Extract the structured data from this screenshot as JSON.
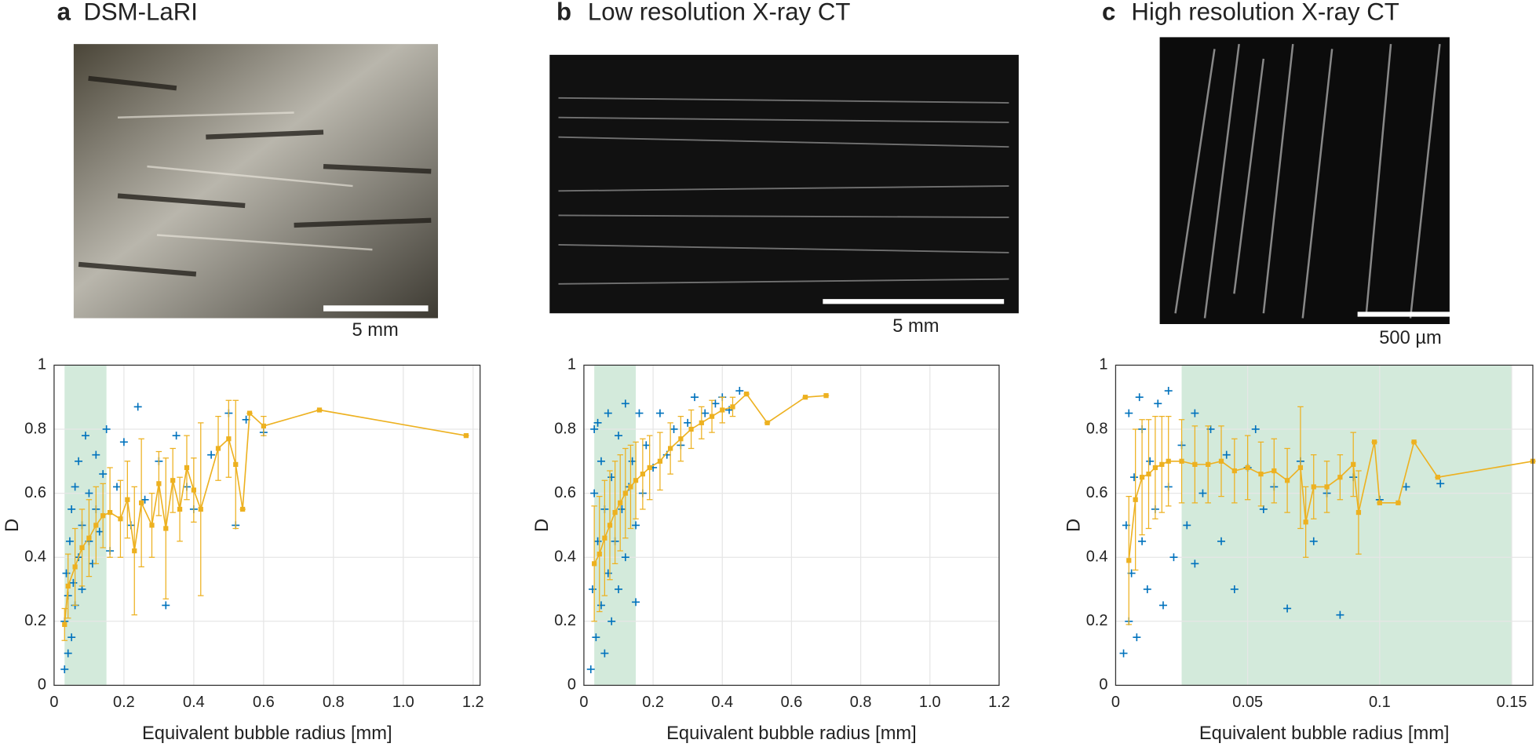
{
  "chart_data": [
    {
      "type": "scatter",
      "panel_label": "a",
      "title": "DSM-LaRI",
      "scale_bar_label": "5 mm",
      "x_label": "Equivalent bubble radius [mm]",
      "y_label": "D",
      "xlim": [
        0,
        1.22
      ],
      "ylim": [
        0,
        1
      ],
      "xticks": [
        0,
        0.2,
        0.4,
        0.6,
        0.8,
        {
          "value": 1,
          "label": "1.0"
        },
        1.2
      ],
      "yticks": [
        0,
        0.2,
        0.4,
        0.6,
        0.8,
        1
      ],
      "grid": true,
      "highlight": [
        0.03,
        0.15
      ],
      "highlight_color": "#d3eadb",
      "series": [
        {
          "color": "#0072bd",
          "x": [
            0.03,
            0.03,
            0.035,
            0.04,
            0.04,
            0.045,
            0.05,
            0.05,
            0.055,
            0.06,
            0.06,
            0.07,
            0.07,
            0.08,
            0.08,
            0.09,
            0.1,
            0.1,
            0.11,
            0.12,
            0.12,
            0.13,
            0.14,
            0.15,
            0.16,
            0.18,
            0.2,
            0.22,
            0.24,
            0.26,
            0.3,
            0.32,
            0.35,
            0.38,
            0.4,
            0.45,
            0.5,
            0.52,
            0.55,
            0.6
          ],
          "values": [
            0.05,
            0.2,
            0.35,
            0.1,
            0.28,
            0.45,
            0.15,
            0.55,
            0.32,
            0.25,
            0.62,
            0.4,
            0.7,
            0.3,
            0.5,
            0.78,
            0.45,
            0.6,
            0.38,
            0.55,
            0.72,
            0.48,
            0.66,
            0.8,
            0.42,
            0.62,
            0.76,
            0.5,
            0.87,
            0.58,
            0.7,
            0.25,
            0.78,
            0.62,
            0.55,
            0.72,
            0.85,
            0.5,
            0.83,
            0.79
          ]
        },
        {
          "color": "#edb120",
          "x": [
            0.03,
            0.04,
            0.06,
            0.08,
            0.1,
            0.12,
            0.14,
            0.16,
            0.19,
            0.21,
            0.23,
            0.25,
            0.28,
            0.3,
            0.32,
            0.34,
            0.36,
            0.38,
            0.4,
            0.42,
            0.47,
            0.5,
            0.52,
            0.54,
            0.56,
            0.6,
            0.76,
            1.18
          ],
          "values": [
            0.19,
            0.31,
            0.37,
            0.43,
            0.46,
            0.5,
            0.53,
            0.54,
            0.52,
            0.58,
            0.42,
            0.57,
            0.5,
            0.63,
            0.49,
            0.64,
            0.55,
            0.68,
            0.61,
            0.55,
            0.74,
            0.77,
            0.69,
            0.55,
            0.85,
            0.81,
            0.86,
            0.78
          ],
          "errors": [
            0.05,
            0.1,
            0.12,
            0.12,
            0.12,
            0.12,
            0.1,
            0.14,
            0.12,
            0.12,
            0.2,
            0.2,
            0.1,
            0.1,
            0.22,
            0.1,
            0.1,
            0.1,
            0.1,
            0.27,
            0.1,
            0.12,
            0.2,
            0,
            0,
            0.03,
            0,
            0
          ]
        }
      ]
    },
    {
      "type": "scatter",
      "panel_label": "b",
      "title": "Low resolution X-ray CT",
      "scale_bar_label": "5 mm",
      "x_label": "Equivalent bubble radius [mm]",
      "y_label": "D",
      "xlim": [
        0,
        1.2
      ],
      "ylim": [
        0,
        1
      ],
      "xticks": [
        0,
        0.2,
        0.4,
        0.6,
        0.8,
        {
          "value": 1,
          "label": "1.0"
        },
        1.2
      ],
      "yticks": [
        0,
        0.2,
        0.4,
        0.6,
        0.8,
        1
      ],
      "grid": true,
      "highlight": [
        0.03,
        0.15
      ],
      "highlight_color": "#d3eadb",
      "series": [
        {
          "color": "#0072bd",
          "x": [
            0.02,
            0.025,
            0.03,
            0.03,
            0.035,
            0.04,
            0.04,
            0.05,
            0.05,
            0.06,
            0.06,
            0.07,
            0.07,
            0.08,
            0.08,
            0.09,
            0.1,
            0.1,
            0.11,
            0.12,
            0.12,
            0.13,
            0.14,
            0.15,
            0.16,
            0.17,
            0.18,
            0.2,
            0.22,
            0.24,
            0.26,
            0.28,
            0.3,
            0.32,
            0.35,
            0.38,
            0.4,
            0.42,
            0.45,
            0.15
          ],
          "values": [
            0.05,
            0.3,
            0.6,
            0.8,
            0.15,
            0.45,
            0.82,
            0.25,
            0.7,
            0.1,
            0.55,
            0.35,
            0.85,
            0.2,
            0.65,
            0.45,
            0.3,
            0.78,
            0.55,
            0.4,
            0.88,
            0.62,
            0.7,
            0.5,
            0.85,
            0.6,
            0.75,
            0.68,
            0.85,
            0.72,
            0.8,
            0.75,
            0.82,
            0.9,
            0.85,
            0.88,
            0.9,
            0.86,
            0.92,
            0.26
          ]
        },
        {
          "color": "#edb120",
          "x": [
            0.03,
            0.045,
            0.06,
            0.075,
            0.09,
            0.105,
            0.12,
            0.135,
            0.15,
            0.17,
            0.19,
            0.22,
            0.25,
            0.28,
            0.31,
            0.34,
            0.37,
            0.4,
            0.43,
            0.47,
            0.53,
            0.64,
            0.7
          ],
          "values": [
            0.38,
            0.41,
            0.46,
            0.5,
            0.54,
            0.57,
            0.6,
            0.62,
            0.64,
            0.66,
            0.68,
            0.7,
            0.74,
            0.77,
            0.8,
            0.82,
            0.84,
            0.86,
            0.87,
            0.91,
            0.82,
            0.9,
            0.905
          ],
          "errors": [
            0.18,
            0.18,
            0.18,
            0.17,
            0.16,
            0.15,
            0.14,
            0.13,
            0.12,
            0.11,
            0.1,
            0.09,
            0.08,
            0.07,
            0.06,
            0.05,
            0.05,
            0.04,
            0.03,
            0,
            0,
            0,
            0
          ]
        }
      ]
    },
    {
      "type": "scatter",
      "panel_label": "c",
      "title": "High resolution X-ray CT",
      "scale_bar_label": "500 µm",
      "x_label": "Equivalent bubble radius [mm]",
      "y_label": "D",
      "xlim": [
        0,
        0.158
      ],
      "ylim": [
        0,
        1
      ],
      "xticks": [
        0,
        0.05,
        0.1,
        0.15
      ],
      "yticks": [
        0,
        0.2,
        0.4,
        0.6,
        0.8,
        1
      ],
      "grid": true,
      "highlight": [
        0.025,
        0.15
      ],
      "highlight_color": "#d3eadb",
      "series": [
        {
          "color": "#0072bd",
          "x": [
            0.003,
            0.004,
            0.005,
            0.005,
            0.006,
            0.007,
            0.008,
            0.009,
            0.01,
            0.01,
            0.012,
            0.013,
            0.015,
            0.016,
            0.018,
            0.02,
            0.02,
            0.022,
            0.025,
            0.027,
            0.03,
            0.03,
            0.033,
            0.036,
            0.04,
            0.042,
            0.045,
            0.05,
            0.053,
            0.056,
            0.06,
            0.065,
            0.07,
            0.075,
            0.08,
            0.085,
            0.09,
            0.1,
            0.11,
            0.123
          ],
          "values": [
            0.1,
            0.5,
            0.2,
            0.85,
            0.35,
            0.65,
            0.15,
            0.9,
            0.45,
            0.8,
            0.3,
            0.7,
            0.55,
            0.88,
            0.25,
            0.62,
            0.92,
            0.4,
            0.75,
            0.5,
            0.85,
            0.38,
            0.6,
            0.8,
            0.45,
            0.72,
            0.3,
            0.68,
            0.8,
            0.55,
            0.62,
            0.24,
            0.7,
            0.45,
            0.6,
            0.22,
            0.65,
            0.58,
            0.62,
            0.63
          ]
        },
        {
          "color": "#edb120",
          "x": [
            0.005,
            0.0075,
            0.01,
            0.0125,
            0.015,
            0.0175,
            0.02,
            0.025,
            0.03,
            0.035,
            0.04,
            0.045,
            0.05,
            0.055,
            0.06,
            0.065,
            0.07,
            0.072,
            0.075,
            0.08,
            0.085,
            0.09,
            0.092,
            0.098,
            0.1,
            0.107,
            0.113,
            0.122,
            0.158
          ],
          "values": [
            0.39,
            0.58,
            0.65,
            0.66,
            0.68,
            0.69,
            0.7,
            0.7,
            0.69,
            0.69,
            0.7,
            0.67,
            0.68,
            0.66,
            0.67,
            0.64,
            0.68,
            0.51,
            0.62,
            0.62,
            0.65,
            0.69,
            0.54,
            0.76,
            0.57,
            0.57,
            0.76,
            0.65,
            0.7
          ],
          "errors": [
            0.2,
            0.22,
            0.18,
            0.17,
            0.16,
            0.15,
            0.14,
            0.13,
            0.12,
            0.12,
            0.11,
            0.1,
            0.1,
            0.1,
            0.1,
            0.1,
            0.19,
            0.11,
            0.1,
            0.08,
            0.07,
            0.1,
            0.13,
            0,
            0,
            0,
            0,
            0,
            0
          ]
        }
      ]
    }
  ]
}
